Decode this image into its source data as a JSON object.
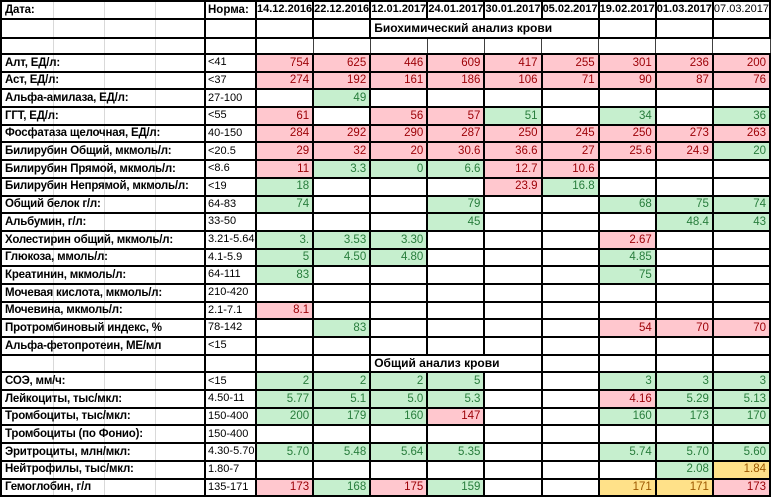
{
  "header": {
    "date_label": "Дата:",
    "norm_label": "Норма:",
    "dates": [
      {
        "label": "14.12.2016",
        "bold": true
      },
      {
        "label": "22.12.2016",
        "bold": true
      },
      {
        "label": "12.01.2017",
        "bold": true
      },
      {
        "label": "24.01.2017",
        "bold": true
      },
      {
        "label": "30.01.2017",
        "bold": true
      },
      {
        "label": "05.02.2017",
        "bold": true
      },
      {
        "label": "19.02.2017",
        "bold": true
      },
      {
        "label": "01.03.2017",
        "bold": true
      },
      {
        "label": "07.03.2017",
        "bold": false
      }
    ]
  },
  "colors": {
    "out_of_norm_bg": "#ffc7ce",
    "out_of_norm_text": "#9c0006",
    "normal_bg": "#c6efce",
    "normal_text": "#287d3c",
    "borderline_bg": "#ffe189",
    "borderline_text": "#9c5700",
    "border": "#000000",
    "gridline": "#d9d9d9"
  },
  "rows": [
    {
      "type": "section",
      "title": "Биохимический анализ крови",
      "span": 4
    },
    {
      "type": "spacer"
    },
    {
      "type": "data",
      "label": "Алт, ЕД/л:",
      "norm": "<41",
      "cells": [
        {
          "v": "754",
          "c": "r"
        },
        {
          "v": "625",
          "c": "r"
        },
        {
          "v": "446",
          "c": "r"
        },
        {
          "v": "609",
          "c": "r"
        },
        {
          "v": "417",
          "c": "r"
        },
        {
          "v": "255",
          "c": "r"
        },
        {
          "v": "301",
          "c": "r"
        },
        {
          "v": "236",
          "c": "r"
        },
        {
          "v": "200",
          "c": "r"
        }
      ]
    },
    {
      "type": "data",
      "label": "Аст, ЕД/л:",
      "norm": "<37",
      "cells": [
        {
          "v": "274",
          "c": "r"
        },
        {
          "v": "192",
          "c": "r"
        },
        {
          "v": "161",
          "c": "r"
        },
        {
          "v": "186",
          "c": "r"
        },
        {
          "v": "106",
          "c": "r"
        },
        {
          "v": "71",
          "c": "r"
        },
        {
          "v": "90",
          "c": "r"
        },
        {
          "v": "87",
          "c": "r"
        },
        {
          "v": "76",
          "c": "r"
        }
      ]
    },
    {
      "type": "data",
      "label": "Альфа-амилаза, ЕД/л:",
      "norm": "27-100",
      "cells": [
        null,
        {
          "v": "49",
          "c": "g"
        },
        null,
        null,
        null,
        null,
        null,
        null,
        null
      ]
    },
    {
      "type": "data",
      "label": "ГГТ, ЕД/л:",
      "norm": "<55",
      "cells": [
        {
          "v": "61",
          "c": "r"
        },
        null,
        {
          "v": "56",
          "c": "r"
        },
        {
          "v": "57",
          "c": "r"
        },
        {
          "v": "51",
          "c": "g"
        },
        null,
        {
          "v": "34",
          "c": "g"
        },
        null,
        {
          "v": "36",
          "c": "g"
        }
      ]
    },
    {
      "type": "data",
      "label": "Фосфатаза щелочная, ЕД/л:",
      "norm": "40-150",
      "cells": [
        {
          "v": "284",
          "c": "r"
        },
        {
          "v": "292",
          "c": "r"
        },
        {
          "v": "290",
          "c": "r"
        },
        {
          "v": "287",
          "c": "r"
        },
        {
          "v": "250",
          "c": "r"
        },
        {
          "v": "245",
          "c": "r"
        },
        {
          "v": "250",
          "c": "r"
        },
        {
          "v": "273",
          "c": "r"
        },
        {
          "v": "263",
          "c": "r"
        }
      ]
    },
    {
      "type": "data",
      "label": "Билирубин Общий, мкмоль/л:",
      "norm": "<20.5",
      "cells": [
        {
          "v": "29",
          "c": "r"
        },
        {
          "v": "32",
          "c": "r"
        },
        {
          "v": "20",
          "c": "r"
        },
        {
          "v": "30.6",
          "c": "r"
        },
        {
          "v": "36.6",
          "c": "r"
        },
        {
          "v": "27",
          "c": "r"
        },
        {
          "v": "25.6",
          "c": "r"
        },
        {
          "v": "24.9",
          "c": "r"
        },
        {
          "v": "20",
          "c": "g"
        }
      ]
    },
    {
      "type": "data",
      "label": "Билирубин Прямой, мкмоль/л:",
      "norm": "<8.6",
      "cells": [
        {
          "v": "11",
          "c": "r"
        },
        {
          "v": "3.3",
          "c": "g"
        },
        {
          "v": "0",
          "c": "g"
        },
        {
          "v": "6.6",
          "c": "g"
        },
        {
          "v": "12.7",
          "c": "r"
        },
        {
          "v": "10.6",
          "c": "r"
        },
        null,
        null,
        null
      ]
    },
    {
      "type": "data",
      "label": "Билирубин Непрямой, мкмоль/л:",
      "norm": "<19",
      "cells": [
        {
          "v": "18",
          "c": "g"
        },
        null,
        null,
        null,
        {
          "v": "23.9",
          "c": "r"
        },
        {
          "v": "16.8",
          "c": "g"
        },
        null,
        null,
        null
      ]
    },
    {
      "type": "data",
      "label": "Общий белок г/л:",
      "norm": "64-83",
      "cells": [
        {
          "v": "74",
          "c": "g"
        },
        null,
        null,
        {
          "v": "79",
          "c": "g"
        },
        null,
        null,
        {
          "v": "68",
          "c": "g"
        },
        {
          "v": "75",
          "c": "g"
        },
        {
          "v": "74",
          "c": "g"
        }
      ]
    },
    {
      "type": "data",
      "label": "Альбумин, г/л:",
      "norm": "33-50",
      "cells": [
        null,
        null,
        null,
        {
          "v": "45",
          "c": "g"
        },
        null,
        null,
        null,
        {
          "v": "48.4",
          "c": "g"
        },
        {
          "v": "43",
          "c": "g"
        }
      ]
    },
    {
      "type": "data",
      "label": "Холестирин общий, мкмоль/л:",
      "norm": "3.21-5.64",
      "cells": [
        {
          "v": "3.",
          "c": "g"
        },
        {
          "v": "3.53",
          "c": "g"
        },
        {
          "v": "3.30",
          "c": "g"
        },
        null,
        null,
        null,
        {
          "v": "2.67",
          "c": "r"
        },
        null,
        null
      ]
    },
    {
      "type": "data",
      "label": "Глюкоза, ммоль/л:",
      "norm": "4.1-5.9",
      "cells": [
        {
          "v": "5",
          "c": "g"
        },
        {
          "v": "4.50",
          "c": "g"
        },
        {
          "v": "4.80",
          "c": "g"
        },
        null,
        null,
        null,
        {
          "v": "4.85",
          "c": "g"
        },
        null,
        null
      ]
    },
    {
      "type": "data",
      "label": "Креатинин, мкмоль/л:",
      "norm": "64-111",
      "cells": [
        {
          "v": "83",
          "c": "g"
        },
        null,
        null,
        null,
        null,
        null,
        {
          "v": "75",
          "c": "g"
        },
        null,
        null
      ]
    },
    {
      "type": "data",
      "label": "Мочевая кислота, мкмоль/л:",
      "norm": "210-420",
      "cells": [
        null,
        null,
        null,
        null,
        null,
        null,
        null,
        null,
        null
      ]
    },
    {
      "type": "data",
      "label": "Мочевина, мкмоль/л:",
      "norm": "2.1-7.1",
      "cells": [
        {
          "v": "8.1",
          "c": "r"
        },
        null,
        null,
        null,
        null,
        null,
        null,
        null,
        null
      ]
    },
    {
      "type": "data",
      "label": "Протромбиновый индекс, %",
      "norm": "78-142",
      "cells": [
        null,
        {
          "v": "83",
          "c": "g"
        },
        null,
        null,
        null,
        null,
        {
          "v": "54",
          "c": "r"
        },
        {
          "v": "70",
          "c": "r"
        },
        {
          "v": "70",
          "c": "r"
        }
      ]
    },
    {
      "type": "data",
      "label": "Альфа-фетопротеин, МЕ/мл",
      "norm": "<15",
      "cells": [
        null,
        null,
        null,
        null,
        null,
        null,
        null,
        null,
        null
      ]
    },
    {
      "type": "section",
      "title": "Общий анализ крови",
      "span": 3
    },
    {
      "type": "data",
      "label": "СОЭ, мм/ч:",
      "norm": "<15",
      "cells": [
        {
          "v": "2",
          "c": "g"
        },
        {
          "v": "2",
          "c": "g"
        },
        {
          "v": "2",
          "c": "g"
        },
        {
          "v": "5",
          "c": "g"
        },
        null,
        null,
        {
          "v": "3",
          "c": "g"
        },
        {
          "v": "3",
          "c": "g"
        },
        {
          "v": "3",
          "c": "g"
        }
      ]
    },
    {
      "type": "data",
      "label": "Лейкоциты, тыс/мкл:",
      "norm": "4.50-11",
      "cells": [
        {
          "v": "5.77",
          "c": "g"
        },
        {
          "v": "5.1",
          "c": "g"
        },
        {
          "v": "5.0",
          "c": "g"
        },
        {
          "v": "5.3",
          "c": "g"
        },
        null,
        null,
        {
          "v": "4.16",
          "c": "r"
        },
        {
          "v": "5.29",
          "c": "g"
        },
        {
          "v": "5.13",
          "c": "g"
        }
      ]
    },
    {
      "type": "data",
      "label": "Тромбоциты, тыс/мкл:",
      "norm": "150-400",
      "cells": [
        {
          "v": "200",
          "c": "g"
        },
        {
          "v": "179",
          "c": "g"
        },
        {
          "v": "160",
          "c": "g"
        },
        {
          "v": "147",
          "c": "r"
        },
        null,
        null,
        {
          "v": "160",
          "c": "g"
        },
        {
          "v": "173",
          "c": "g"
        },
        {
          "v": "170",
          "c": "g"
        }
      ]
    },
    {
      "type": "data",
      "label": "Тромбоциты (по Фонио):",
      "norm": "150-400",
      "cells": [
        null,
        null,
        null,
        null,
        null,
        null,
        null,
        null,
        null
      ]
    },
    {
      "type": "data",
      "label": "Эритроциты, млн/мкл:",
      "norm": "4.30-5.70",
      "cells": [
        {
          "v": "5.70",
          "c": "g"
        },
        {
          "v": "5.48",
          "c": "g"
        },
        {
          "v": "5.64",
          "c": "g"
        },
        {
          "v": "5.35",
          "c": "g"
        },
        null,
        null,
        {
          "v": "5.74",
          "c": "g"
        },
        {
          "v": "5.70",
          "c": "g"
        },
        {
          "v": "5.60",
          "c": "g"
        }
      ]
    },
    {
      "type": "data",
      "label": "Нейтрофилы, тыс/мкл:",
      "norm": "1.80-7",
      "cells": [
        null,
        null,
        null,
        null,
        null,
        null,
        null,
        {
          "v": "2.08",
          "c": "g"
        },
        {
          "v": "1.84",
          "c": "y"
        }
      ]
    },
    {
      "type": "data",
      "label": "Гемоглобин, г/л",
      "norm": "135-171",
      "cells": [
        {
          "v": "173",
          "c": "r"
        },
        {
          "v": "168",
          "c": "g"
        },
        {
          "v": "175",
          "c": "r"
        },
        {
          "v": "159",
          "c": "g"
        },
        null,
        null,
        {
          "v": "171",
          "c": "y"
        },
        {
          "v": "171",
          "c": "y"
        },
        {
          "v": "173",
          "c": "r"
        }
      ]
    }
  ]
}
